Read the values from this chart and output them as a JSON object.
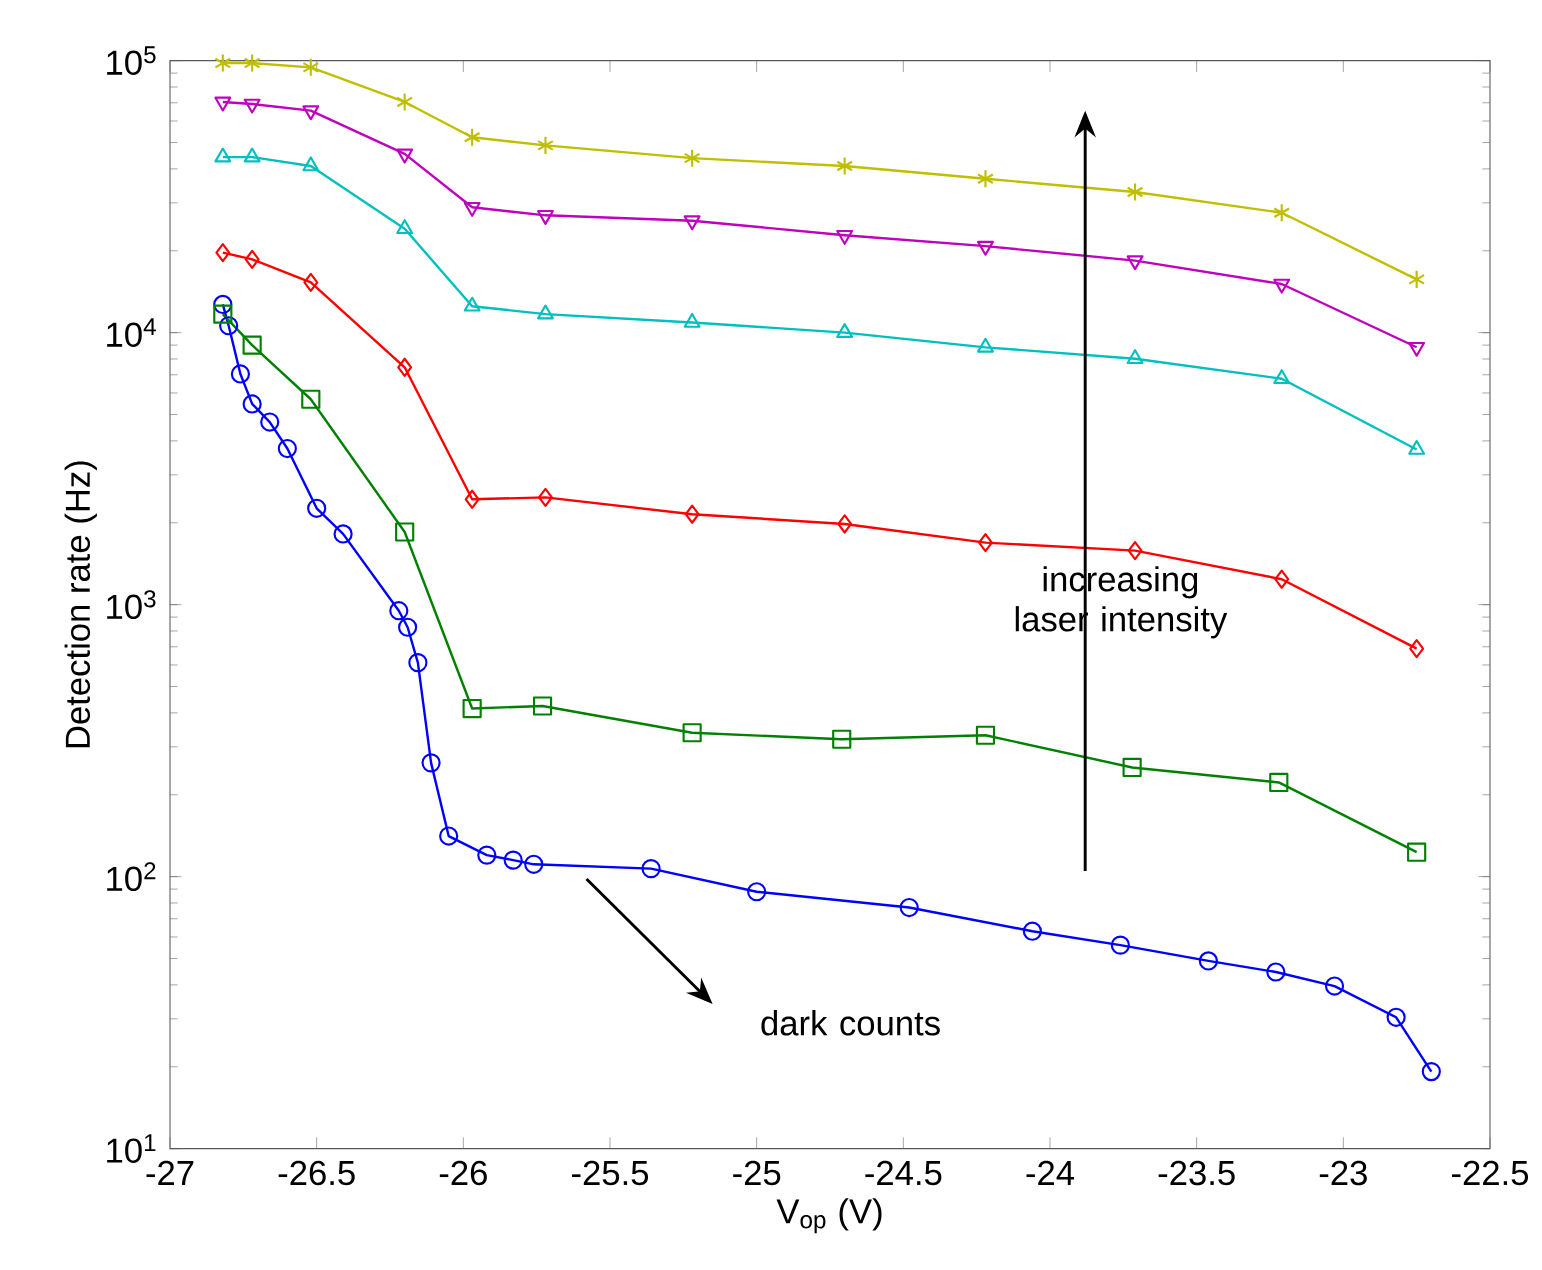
{
  "chart_data": {
    "type": "line",
    "xlabel": "V$_{op}$ (V)",
    "ylabel": "Detection rate (Hz)",
    "log": "y",
    "grid": false,
    "line_style": "solid",
    "xlim": [
      -27,
      -22.5
    ],
    "xticks": [
      -27,
      -26.5,
      -26,
      -25.5,
      -25,
      -24.5,
      -24,
      -23.5,
      -23,
      -22.5
    ],
    "ylim": [
      10,
      100000
    ],
    "yticks": [
      {
        "value": 10,
        "label": "10$^{1}$"
      },
      {
        "value": 100,
        "label": "10$^{2}$"
      },
      {
        "value": 1000,
        "label": "10$^{3}$"
      },
      {
        "value": 10000,
        "label": "10$^{4}$"
      },
      {
        "value": 100000,
        "label": "10$^{5}$"
      }
    ],
    "annotations": [
      "increasing laser intensity",
      "dark counts"
    ],
    "series": [
      {
        "color": "#0000ff",
        "marker": "circle",
        "x": [
          -26.82,
          -26.8,
          -26.76,
          -26.72,
          -26.66,
          -26.6,
          -26.5,
          -26.41,
          -26.22,
          -26.19,
          -26.155,
          -26.11,
          -26.05,
          -25.92,
          -25.83,
          -25.76,
          -25.36,
          -25.0,
          -24.48,
          -24.06,
          -23.76,
          -23.46,
          -23.23,
          -23.03,
          -22.82,
          -22.7
        ],
        "values": [
          12700,
          10600,
          7050,
          5470,
          4690,
          3750,
          2260,
          1820,
          950,
          826,
          612,
          262,
          141,
          120,
          115,
          111,
          107,
          88,
          77,
          63,
          56,
          49,
          44.6,
          39.6,
          30.4,
          19.2
        ]
      },
      {
        "color": "#008000",
        "marker": "square",
        "x": [
          -26.82,
          -26.72,
          -26.52,
          -26.2,
          -25.97,
          -25.73,
          -25.22,
          -24.71,
          -24.22,
          -23.72,
          -23.22,
          -22.75
        ],
        "values": [
          11700,
          9000,
          5690,
          1850,
          415,
          424,
          338,
          320,
          331,
          252,
          222,
          123
        ]
      },
      {
        "color": "#ff0000",
        "marker": "diamond",
        "x": [
          -26.82,
          -26.72,
          -26.52,
          -26.2,
          -25.97,
          -25.72,
          -25.22,
          -24.7,
          -24.22,
          -23.71,
          -23.21,
          -22.75
        ],
        "values": [
          19700,
          18600,
          15300,
          7460,
          2440,
          2480,
          2150,
          1980,
          1690,
          1580,
          1240,
          689
        ]
      },
      {
        "color": "#00bfbf",
        "marker": "triangle",
        "x": [
          -26.82,
          -26.72,
          -26.52,
          -26.2,
          -25.97,
          -25.72,
          -25.22,
          -24.7,
          -24.22,
          -23.71,
          -23.21,
          -22.75
        ],
        "values": [
          44200,
          44200,
          41000,
          24100,
          12500,
          11700,
          10900,
          10000,
          8830,
          8020,
          6770,
          3720
        ]
      },
      {
        "color": "#bf00bf",
        "marker": "triangle-down",
        "x": [
          -26.82,
          -26.72,
          -26.52,
          -26.2,
          -25.97,
          -25.72,
          -25.22,
          -24.7,
          -24.22,
          -23.71,
          -23.21,
          -22.75
        ],
        "values": [
          70500,
          69300,
          65500,
          45400,
          28900,
          27000,
          25800,
          22800,
          20800,
          18400,
          15100,
          8840
        ]
      },
      {
        "color": "#bfbf00",
        "marker": "cross",
        "x": [
          -26.82,
          -26.72,
          -26.52,
          -26.2,
          -25.97,
          -25.72,
          -25.22,
          -24.7,
          -24.22,
          -23.71,
          -23.21,
          -22.75
        ],
        "values": [
          98000,
          98000,
          94500,
          70500,
          52300,
          48800,
          43800,
          41000,
          36800,
          32900,
          27600,
          15700
        ]
      }
    ]
  }
}
